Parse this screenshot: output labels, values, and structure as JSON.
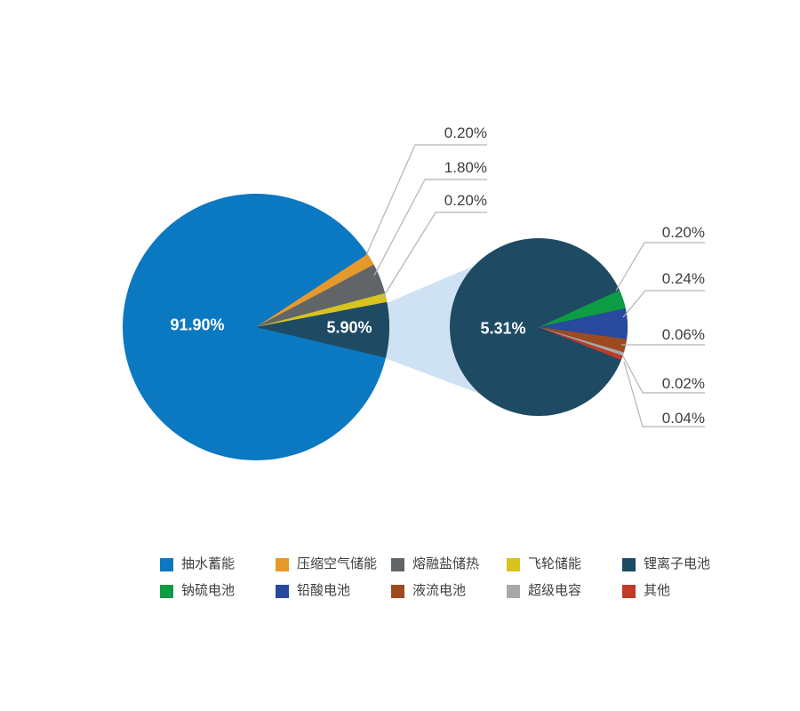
{
  "chart_data": {
    "type": "pie",
    "variant": "pie-of-pie",
    "title": "",
    "unit": "%",
    "legend_position": "bottom",
    "connector_color": "#cfe2f3",
    "primary": {
      "slices": [
        {
          "name": "抽水蓄能",
          "value": 91.9,
          "label": "91.90%",
          "color": "#0b78c2"
        },
        {
          "name": "压缩空气储能",
          "value": 0.2,
          "label": "0.20%",
          "color": "#e6992b"
        },
        {
          "name": "熔融盐储热",
          "value": 1.8,
          "label": "1.80%",
          "color": "#616568"
        },
        {
          "name": "飞轮储能",
          "value": 0.2,
          "label": "0.20%",
          "color": "#d8c31f"
        },
        {
          "name": "锂离子电池",
          "value": 5.9,
          "label": "5.90%",
          "color": "#1e4a63",
          "group": true
        }
      ]
    },
    "secondary": {
      "slices": [
        {
          "name": "锂离子电池",
          "value": 5.31,
          "label": "5.31%",
          "color": "#1e4a63"
        },
        {
          "name": "钠硫电池",
          "value": 0.2,
          "label": "0.20%",
          "color": "#0d9c44"
        },
        {
          "name": "铅酸电池",
          "value": 0.24,
          "label": "0.24%",
          "color": "#28499e"
        },
        {
          "name": "液流电池",
          "value": 0.06,
          "label": "0.06%",
          "color": "#9e4a1f"
        },
        {
          "name": "超级电容",
          "value": 0.02,
          "label": "0.02%",
          "color": "#a8a8a8"
        },
        {
          "name": "其他",
          "value": 0.04,
          "label": "0.04%",
          "color": "#bf3b28"
        }
      ]
    },
    "legend": [
      {
        "label": "抽水蓄能",
        "color": "#0b78c2"
      },
      {
        "label": "压缩空气储能",
        "color": "#e6992b"
      },
      {
        "label": "熔融盐储热",
        "color": "#616568"
      },
      {
        "label": "飞轮储能",
        "color": "#d8c31f"
      },
      {
        "label": "锂离子电池",
        "color": "#1e4a63"
      },
      {
        "label": "钠硫电池",
        "color": "#0d9c44"
      },
      {
        "label": "铅酸电池",
        "color": "#28499e"
      },
      {
        "label": "液流电池",
        "color": "#9e4a1f"
      },
      {
        "label": "超级电容",
        "color": "#a8a8a8"
      },
      {
        "label": "其他",
        "color": "#bf3b28"
      }
    ]
  }
}
